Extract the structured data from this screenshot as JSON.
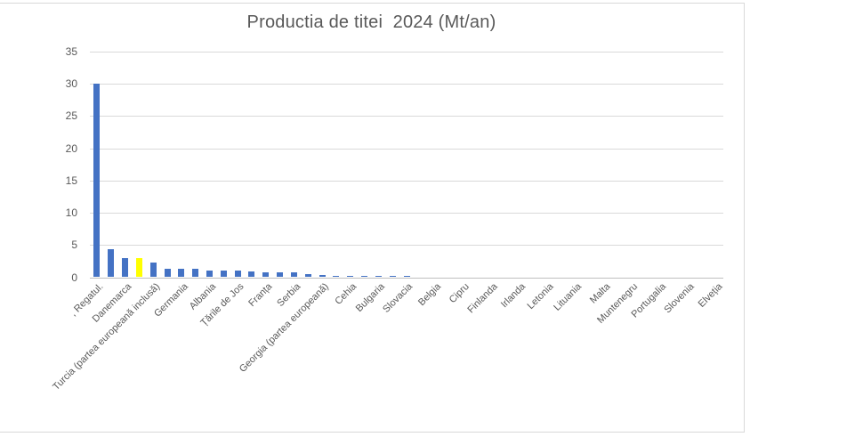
{
  "chart_data": {
    "type": "bar",
    "title": "Productia de titei  2024 (Mt/an)",
    "xlabel": "",
    "ylabel": "",
    "ylim": [
      0,
      35
    ],
    "yticks": [
      0,
      5,
      10,
      15,
      20,
      25,
      30,
      35
    ],
    "grid": true,
    "legend_position": "none",
    "bar_color": "#4472c4",
    "highlight_color": "#ffff00",
    "highlight_index": 3,
    "n_categories": 45,
    "tick_label_every": 2,
    "tick_labels": [
      ", Regatul.",
      "Danemarca",
      "Turcia (partea europeană inclusă)",
      "Germania",
      "Albania",
      "Țările de Jos",
      "Franța",
      "Serbia",
      "Georgia (partea europeană)",
      "Cehia",
      "Bulgaria",
      "Slovacia",
      "Belgia",
      "Cipru",
      "Finlanda",
      "Irlanda",
      "Letonia",
      "Lituania",
      "Malta",
      "Muntenegru",
      "Portugalia",
      "Slovenia",
      "Elveția"
    ],
    "values": [
      30,
      4.4,
      3,
      2.9,
      2.3,
      1.3,
      1.3,
      1.3,
      1.1,
      1,
      1,
      0.9,
      0.7,
      0.8,
      0.8,
      0.55,
      0.3,
      0.25,
      0.25,
      0.25,
      0.25,
      0.25,
      0.25,
      0,
      0,
      0,
      0,
      0,
      0,
      0,
      0,
      0,
      0,
      0,
      0,
      0,
      0,
      0,
      0,
      0,
      0,
      0,
      0,
      0,
      0
    ]
  }
}
